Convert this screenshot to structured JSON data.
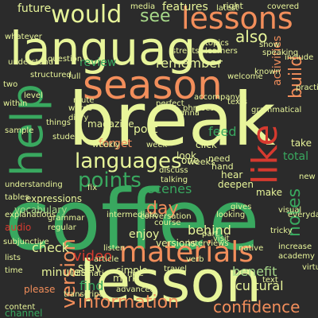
{
  "background": "#2b2b2b",
  "palette": [
    "#e8f59a",
    "#f28e5b",
    "#39a85f",
    "#d63a2f",
    "#a8d98a",
    "#1e8a47",
    "#fbd38d",
    "#b11f2a"
  ],
  "words": [
    {
      "text": "break"
    },
    {
      "text": "coffee"
    },
    {
      "text": "lesson"
    },
    {
      "text": "language"
    },
    {
      "text": "season"
    },
    {
      "text": "materials"
    },
    {
      "text": "lessons"
    },
    {
      "text": "would"
    },
    {
      "text": "help"
    },
    {
      "text": "like"
    },
    {
      "text": "languages"
    },
    {
      "text": "information"
    },
    {
      "text": "points"
    },
    {
      "text": "see"
    },
    {
      "text": "also"
    },
    {
      "text": "confidence"
    },
    {
      "text": "version"
    },
    {
      "text": "review"
    },
    {
      "text": "remember"
    },
    {
      "text": "build"
    },
    {
      "text": "notes"
    },
    {
      "text": "day"
    },
    {
      "text": "features"
    },
    {
      "text": "activities"
    },
    {
      "text": "video"
    },
    {
      "text": "find"
    },
    {
      "text": "behind"
    },
    {
      "text": "enjoy"
    },
    {
      "text": "check"
    },
    {
      "text": "post"
    },
    {
      "text": "feed"
    },
    {
      "text": "forget"
    },
    {
      "text": "scenes"
    },
    {
      "text": "total"
    },
    {
      "text": "benefit"
    },
    {
      "text": "cultural"
    },
    {
      "text": "versions"
    },
    {
      "text": "minutes"
    },
    {
      "text": "stay"
    },
    {
      "text": "audio"
    },
    {
      "text": "magazine"
    },
    {
      "text": "expressions"
    },
    {
      "text": "vocabulary"
    },
    {
      "text": "make"
    },
    {
      "text": "deepen"
    },
    {
      "text": "hear"
    },
    {
      "text": "need"
    },
    {
      "text": "hand"
    },
    {
      "text": "right"
    },
    {
      "text": "latest"
    },
    {
      "text": "covered"
    },
    {
      "text": "learners"
    },
    {
      "text": "future"
    },
    {
      "text": "media"
    },
    {
      "text": "topics"
    },
    {
      "text": "welcome"
    },
    {
      "text": "known"
    },
    {
      "text": "click"
    },
    {
      "text": "look"
    },
    {
      "text": "one"
    },
    {
      "text": "weeks"
    },
    {
      "text": "interviews"
    },
    {
      "text": "native"
    },
    {
      "text": "course"
    },
    {
      "text": "take"
    },
    {
      "text": "channel"
    },
    {
      "text": "please"
    },
    {
      "text": "advanced"
    },
    {
      "text": "simple"
    },
    {
      "text": "mark"
    },
    {
      "text": "increase"
    },
    {
      "text": "academy"
    },
    {
      "text": "whatever"
    },
    {
      "text": "understand"
    },
    {
      "text": "two"
    },
    {
      "text": "full"
    },
    {
      "text": "words"
    },
    {
      "text": "diary"
    },
    {
      "text": "weekly"
    },
    {
      "text": "explanations"
    },
    {
      "text": "regular"
    },
    {
      "text": "grammar"
    },
    {
      "text": "understanding"
    },
    {
      "text": "article"
    },
    {
      "text": "gives"
    },
    {
      "text": "looking"
    },
    {
      "text": "verb"
    },
    {
      "text": "part"
    },
    {
      "text": "visit"
    },
    {
      "text": "sample"
    },
    {
      "text": "lists"
    },
    {
      "text": "time"
    },
    {
      "text": "listen"
    },
    {
      "text": "text"
    },
    {
      "text": "tables"
    },
    {
      "text": "conversation"
    },
    {
      "text": "intermediate"
    },
    {
      "text": "structured"
    },
    {
      "text": "question"
    },
    {
      "text": "perfect"
    },
    {
      "text": "accompany"
    },
    {
      "text": "streets"
    },
    {
      "text": "show"
    },
    {
      "text": "speaking"
    },
    {
      "text": "grammatical"
    },
    {
      "text": "practice"
    },
    {
      "text": "include"
    },
    {
      "text": "transcripts"
    },
    {
      "text": "nice"
    },
    {
      "text": "travel"
    },
    {
      "text": "content"
    },
    {
      "text": "idiomatic"
    },
    {
      "text": "virtual"
    },
    {
      "text": "discuss"
    },
    {
      "text": "talking"
    },
    {
      "text": "tricky"
    },
    {
      "text": "new"
    },
    {
      "text": "things"
    },
    {
      "text": "phrases"
    },
    {
      "text": "route"
    },
    {
      "text": "fix"
    },
    {
      "text": "subjunctive"
    },
    {
      "text": "anna"
    },
    {
      "text": "texts"
    },
    {
      "text": "visual"
    },
    {
      "text": "everyday"
    },
    {
      "text": "within"
    },
    {
      "text": "student"
    },
    {
      "text": "level"
    },
    {
      "text": "week"
    }
  ]
}
